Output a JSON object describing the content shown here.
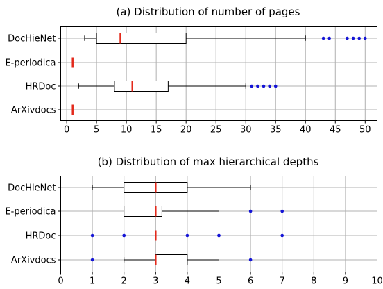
{
  "colors": {
    "median": "#e3291b",
    "outlier": "#1515d6",
    "grid": "#b0b0b0"
  },
  "chart_data": [
    {
      "type": "box",
      "title": "(a)  Distribution of number of pages",
      "xlim": [
        -1,
        52
      ],
      "xticks": [
        0,
        5,
        10,
        15,
        20,
        25,
        30,
        35,
        40,
        45,
        50
      ],
      "grid": true,
      "categories": [
        "DocHieNet",
        "E-periodica",
        "HRDoc",
        "ArXivdocs"
      ],
      "boxes": [
        {
          "name": "DocHieNet",
          "whislo": 3,
          "q1": 5,
          "median": 9,
          "q3": 20,
          "whishi": 40,
          "outliers": [
            43,
            44,
            47,
            48,
            49,
            50
          ]
        },
        {
          "name": "E-periodica",
          "whislo": 1,
          "q1": 1,
          "median": 1,
          "q3": 1,
          "whishi": 1,
          "outliers": []
        },
        {
          "name": "HRDoc",
          "whislo": 2,
          "q1": 8,
          "median": 11,
          "q3": 17,
          "whishi": 30,
          "outliers": [
            31,
            32,
            33,
            34,
            35
          ]
        },
        {
          "name": "ArXivdocs",
          "whislo": 1,
          "q1": 1,
          "median": 1,
          "q3": 1,
          "whishi": 1,
          "outliers": []
        }
      ]
    },
    {
      "type": "box",
      "title": "(b)  Distribution of max hierarchical depths",
      "xlim": [
        0,
        10
      ],
      "xticks": [
        0,
        1,
        2,
        3,
        4,
        5,
        6,
        7,
        8,
        9,
        10
      ],
      "grid": true,
      "categories": [
        "DocHieNet",
        "E-periodica",
        "HRDoc",
        "ArXivdocs"
      ],
      "boxes": [
        {
          "name": "DocHieNet",
          "whislo": 1,
          "q1": 2,
          "median": 3,
          "q3": 4,
          "whishi": 6,
          "outliers": []
        },
        {
          "name": "E-periodica",
          "whislo": 2,
          "q1": 2,
          "median": 3,
          "q3": 3.2,
          "whishi": 5,
          "outliers": [
            6,
            7
          ]
        },
        {
          "name": "HRDoc",
          "whislo": 3,
          "q1": 3,
          "median": 3,
          "q3": 3,
          "whishi": 3,
          "outliers": [
            1,
            2,
            2,
            4,
            5,
            5,
            7
          ]
        },
        {
          "name": "ArXivdocs",
          "whislo": 2,
          "q1": 3,
          "median": 3,
          "q3": 4,
          "whishi": 5,
          "outliers": [
            1,
            6
          ]
        }
      ]
    }
  ]
}
